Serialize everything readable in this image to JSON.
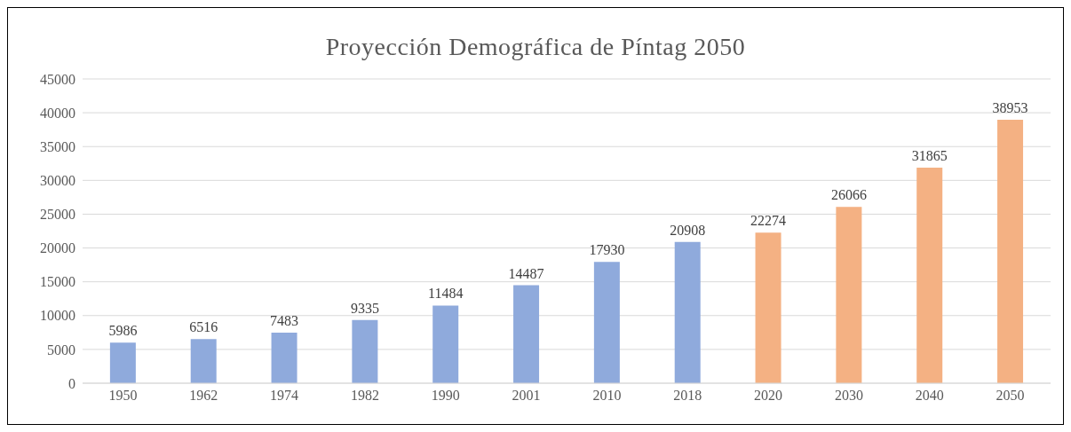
{
  "chart_data": {
    "type": "bar",
    "title": "Proyección Demográfica de Píntag 2050",
    "categories": [
      "1950",
      "1962",
      "1974",
      "1982",
      "1990",
      "2001",
      "2010",
      "2018",
      "2020",
      "2030",
      "2040",
      "2050"
    ],
    "values": [
      5986,
      6516,
      7483,
      9335,
      11484,
      14487,
      17930,
      20908,
      22274,
      26066,
      31865,
      38953
    ],
    "colors": [
      "#8faadc",
      "#8faadc",
      "#8faadc",
      "#8faadc",
      "#8faadc",
      "#8faadc",
      "#8faadc",
      "#8faadc",
      "#f4b183",
      "#f4b183",
      "#f4b183",
      "#f4b183"
    ],
    "ylim": [
      0,
      45000
    ],
    "yticks": [
      0,
      5000,
      10000,
      15000,
      20000,
      25000,
      30000,
      35000,
      40000,
      45000
    ],
    "grid": "y",
    "data_labels": true
  }
}
